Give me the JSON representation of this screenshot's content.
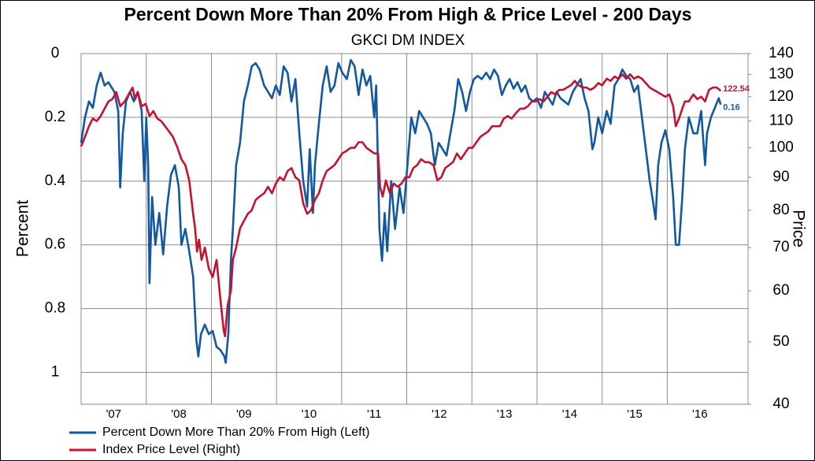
{
  "chart_data": {
    "type": "line",
    "title": "Percent Down More Than 20% From High & Price Level - 200 Days",
    "subtitle": "GKCI DM INDEX",
    "y_label": "Percent",
    "y2_label": "Price",
    "xlim": [
      2007,
      2017.24
    ],
    "xticks": [
      {
        "value": 2007,
        "label": "'07"
      },
      {
        "value": 2008,
        "label": "'08"
      },
      {
        "value": 2009,
        "label": "'09"
      },
      {
        "value": 2010,
        "label": "'10"
      },
      {
        "value": 2011,
        "label": "'11"
      },
      {
        "value": 2012,
        "label": "'12"
      },
      {
        "value": 2013,
        "label": "'13"
      },
      {
        "value": 2014,
        "label": "'14"
      },
      {
        "value": 2015,
        "label": "'15"
      },
      {
        "value": 2016,
        "label": "'16"
      }
    ],
    "ylim": [
      0,
      1.1
    ],
    "y_inverted": true,
    "yticks": [
      0,
      0.2,
      0.4,
      0.6,
      0.8,
      1
    ],
    "y2lim": [
      40,
      140
    ],
    "y2_log": true,
    "y2ticks": [
      40,
      50,
      60,
      70,
      80,
      90,
      100,
      110,
      120,
      130,
      140
    ],
    "grid": true,
    "legend": "bottom-left",
    "series": [
      {
        "name": "Percent Down More Than 20% From High (Left)",
        "color": "#1258a0",
        "axis": "y",
        "x": [
          2007.0,
          2007.06,
          2007.12,
          2007.18,
          2007.24,
          2007.3,
          2007.36,
          2007.42,
          2007.51,
          2007.57,
          2007.6,
          2007.64,
          2007.69,
          2007.75,
          2007.81,
          2007.87,
          2007.93,
          2007.97,
          2008.0,
          2008.03,
          2008.05,
          2008.09,
          2008.14,
          2008.2,
          2008.26,
          2008.32,
          2008.38,
          2008.44,
          2008.5,
          2008.54,
          2008.6,
          2008.66,
          2008.72,
          2008.77,
          2008.8,
          2008.84,
          2008.9,
          2008.96,
          2009.02,
          2009.08,
          2009.14,
          2009.2,
          2009.22,
          2009.26,
          2009.3,
          2009.33,
          2009.38,
          2009.44,
          2009.5,
          2009.56,
          2009.62,
          2009.68,
          2009.74,
          2009.81,
          2009.87,
          2009.93,
          2009.99,
          2010.05,
          2010.11,
          2010.17,
          2010.23,
          2010.29,
          2010.35,
          2010.41,
          2010.47,
          2010.51,
          2010.56,
          2010.59,
          2010.65,
          2010.71,
          2010.77,
          2010.83,
          2010.89,
          2010.95,
          2011.01,
          2011.08,
          2011.14,
          2011.2,
          2011.26,
          2011.32,
          2011.38,
          2011.44,
          2011.5,
          2011.53,
          2011.58,
          2011.62,
          2011.66,
          2011.7,
          2011.76,
          2011.82,
          2011.89,
          2011.95,
          2012.01,
          2012.07,
          2012.13,
          2012.19,
          2012.25,
          2012.31,
          2012.37,
          2012.43,
          2012.49,
          2012.55,
          2012.61,
          2012.67,
          2012.73,
          2012.79,
          2012.85,
          2012.91,
          2012.97,
          2013.03,
          2013.09,
          2013.15,
          2013.22,
          2013.28,
          2013.34,
          2013.4,
          2013.46,
          2013.52,
          2013.58,
          2013.64,
          2013.7,
          2013.76,
          2013.82,
          2013.88,
          2013.94,
          2014.0,
          2014.06,
          2014.12,
          2014.18,
          2014.24,
          2014.3,
          2014.36,
          2014.42,
          2014.48,
          2014.55,
          2014.61,
          2014.67,
          2014.73,
          2014.79,
          2014.85,
          2014.88,
          2014.94,
          2015.0,
          2015.07,
          2015.13,
          2015.19,
          2015.25,
          2015.31,
          2015.37,
          2015.43,
          2015.49,
          2015.55,
          2015.61,
          2015.67,
          2015.73,
          2015.77,
          2015.82,
          2015.86,
          2015.91,
          2015.97,
          2016.03,
          2016.09,
          2016.13,
          2016.18,
          2016.23,
          2016.27,
          2016.33,
          2016.4,
          2016.46,
          2016.52,
          2016.58,
          2016.61,
          2016.67,
          2016.73,
          2016.79,
          2016.82
        ],
        "values": [
          0.28,
          0.2,
          0.15,
          0.17,
          0.1,
          0.06,
          0.1,
          0.09,
          0.12,
          0.18,
          0.42,
          0.25,
          0.15,
          0.12,
          0.15,
          0.12,
          0.18,
          0.4,
          0.2,
          0.35,
          0.72,
          0.45,
          0.6,
          0.5,
          0.63,
          0.48,
          0.38,
          0.35,
          0.42,
          0.6,
          0.55,
          0.62,
          0.7,
          0.9,
          0.95,
          0.88,
          0.85,
          0.88,
          0.87,
          0.92,
          0.93,
          0.95,
          0.97,
          0.88,
          0.65,
          0.55,
          0.35,
          0.28,
          0.15,
          0.1,
          0.04,
          0.03,
          0.05,
          0.1,
          0.12,
          0.14,
          0.1,
          0.13,
          0.04,
          0.06,
          0.15,
          0.08,
          0.25,
          0.4,
          0.48,
          0.3,
          0.5,
          0.35,
          0.22,
          0.1,
          0.04,
          0.12,
          0.1,
          0.03,
          0.06,
          0.08,
          0.02,
          0.04,
          0.13,
          0.05,
          0.1,
          0.07,
          0.2,
          0.1,
          0.55,
          0.65,
          0.5,
          0.62,
          0.4,
          0.55,
          0.42,
          0.5,
          0.35,
          0.2,
          0.25,
          0.18,
          0.2,
          0.22,
          0.25,
          0.35,
          0.28,
          0.3,
          0.32,
          0.25,
          0.18,
          0.08,
          0.12,
          0.18,
          0.12,
          0.08,
          0.07,
          0.08,
          0.06,
          0.08,
          0.05,
          0.07,
          0.13,
          0.1,
          0.08,
          0.11,
          0.09,
          0.12,
          0.1,
          0.14,
          0.15,
          0.14,
          0.17,
          0.12,
          0.14,
          0.16,
          0.12,
          0.14,
          0.15,
          0.16,
          0.12,
          0.1,
          0.08,
          0.14,
          0.18,
          0.3,
          0.28,
          0.2,
          0.25,
          0.18,
          0.22,
          0.1,
          0.08,
          0.05,
          0.07,
          0.08,
          0.12,
          0.1,
          0.2,
          0.3,
          0.4,
          0.45,
          0.52,
          0.35,
          0.28,
          0.24,
          0.3,
          0.45,
          0.6,
          0.6,
          0.45,
          0.3,
          0.2,
          0.25,
          0.25,
          0.18,
          0.35,
          0.25,
          0.2,
          0.17,
          0.14,
          0.16
        ]
      },
      {
        "name": "Index Price Level (Right)",
        "color": "#c41230",
        "axis": "y2",
        "x": [
          2007.0,
          2007.06,
          2007.12,
          2007.18,
          2007.24,
          2007.3,
          2007.36,
          2007.42,
          2007.48,
          2007.54,
          2007.57,
          2007.6,
          2007.67,
          2007.73,
          2007.79,
          2007.83,
          2007.87,
          2007.93,
          2007.99,
          2008.05,
          2008.11,
          2008.17,
          2008.23,
          2008.29,
          2008.35,
          2008.41,
          2008.48,
          2008.54,
          2008.6,
          2008.66,
          2008.72,
          2008.75,
          2008.78,
          2008.81,
          2008.85,
          2008.9,
          2008.96,
          2009.02,
          2009.08,
          2009.14,
          2009.19,
          2009.21,
          2009.25,
          2009.3,
          2009.33,
          2009.38,
          2009.44,
          2009.5,
          2009.56,
          2009.62,
          2009.68,
          2009.74,
          2009.81,
          2009.87,
          2009.93,
          2009.99,
          2010.05,
          2010.11,
          2010.17,
          2010.23,
          2010.29,
          2010.35,
          2010.41,
          2010.47,
          2010.53,
          2010.59,
          2010.65,
          2010.71,
          2010.77,
          2010.83,
          2010.89,
          2010.95,
          2011.01,
          2011.08,
          2011.14,
          2011.2,
          2011.26,
          2011.32,
          2011.38,
          2011.44,
          2011.5,
          2011.56,
          2011.59,
          2011.63,
          2011.68,
          2011.74,
          2011.8,
          2011.86,
          2011.92,
          2011.98,
          2012.04,
          2012.1,
          2012.16,
          2012.22,
          2012.28,
          2012.34,
          2012.41,
          2012.47,
          2012.53,
          2012.59,
          2012.65,
          2012.71,
          2012.77,
          2012.83,
          2012.89,
          2012.95,
          2013.01,
          2013.07,
          2013.13,
          2013.19,
          2013.25,
          2013.31,
          2013.37,
          2013.43,
          2013.49,
          2013.55,
          2013.61,
          2013.67,
          2013.74,
          2013.8,
          2013.86,
          2013.92,
          2013.98,
          2014.04,
          2014.1,
          2014.16,
          2014.22,
          2014.28,
          2014.34,
          2014.4,
          2014.46,
          2014.52,
          2014.58,
          2014.64,
          2014.7,
          2014.76,
          2014.82,
          2014.88,
          2014.94,
          2015.0,
          2015.07,
          2015.13,
          2015.19,
          2015.25,
          2015.31,
          2015.37,
          2015.43,
          2015.49,
          2015.55,
          2015.61,
          2015.67,
          2015.73,
          2015.79,
          2015.85,
          2015.91,
          2015.97,
          2016.03,
          2016.09,
          2016.13,
          2016.18,
          2016.23,
          2016.27,
          2016.33,
          2016.4,
          2016.46,
          2016.52,
          2016.58,
          2016.64,
          2016.7,
          2016.76,
          2016.82
        ],
        "values": [
          100.5,
          104,
          108,
          111,
          110,
          112,
          115,
          118,
          119,
          122,
          119,
          116,
          118,
          121,
          124,
          119,
          122,
          116,
          117,
          112,
          114,
          111,
          110,
          108,
          106,
          104,
          100,
          96,
          94,
          89,
          79,
          75,
          69,
          72,
          67,
          70,
          65,
          63,
          67,
          58,
          52,
          51,
          57,
          60,
          67,
          70,
          75,
          77,
          79,
          80,
          83,
          84,
          85,
          87,
          85,
          88,
          90,
          89,
          92,
          93,
          90,
          89,
          82,
          79,
          80,
          83,
          85,
          89,
          92,
          93,
          94,
          96,
          98,
          99,
          100,
          100,
          102,
          102,
          100,
          99,
          98,
          98,
          87,
          84,
          89,
          85,
          88,
          87,
          88,
          90,
          90,
          93,
          94,
          96,
          95,
          95,
          94,
          89,
          90,
          93,
          94,
          95,
          98,
          96,
          98,
          100,
          100,
          102,
          104,
          105,
          106,
          108,
          108,
          108,
          111,
          112,
          111,
          113,
          115,
          115,
          116,
          118,
          118,
          119,
          118,
          120,
          122,
          121,
          123,
          123,
          124,
          125,
          127,
          125,
          124,
          124,
          123,
          124,
          126,
          125,
          128,
          127,
          129,
          128,
          130,
          128,
          130,
          128,
          129,
          128,
          126,
          124,
          123,
          122,
          121,
          120,
          121,
          116,
          108,
          111,
          115,
          118,
          118,
          121,
          119,
          120,
          118,
          123,
          124,
          124,
          122.54
        ]
      }
    ]
  }
}
